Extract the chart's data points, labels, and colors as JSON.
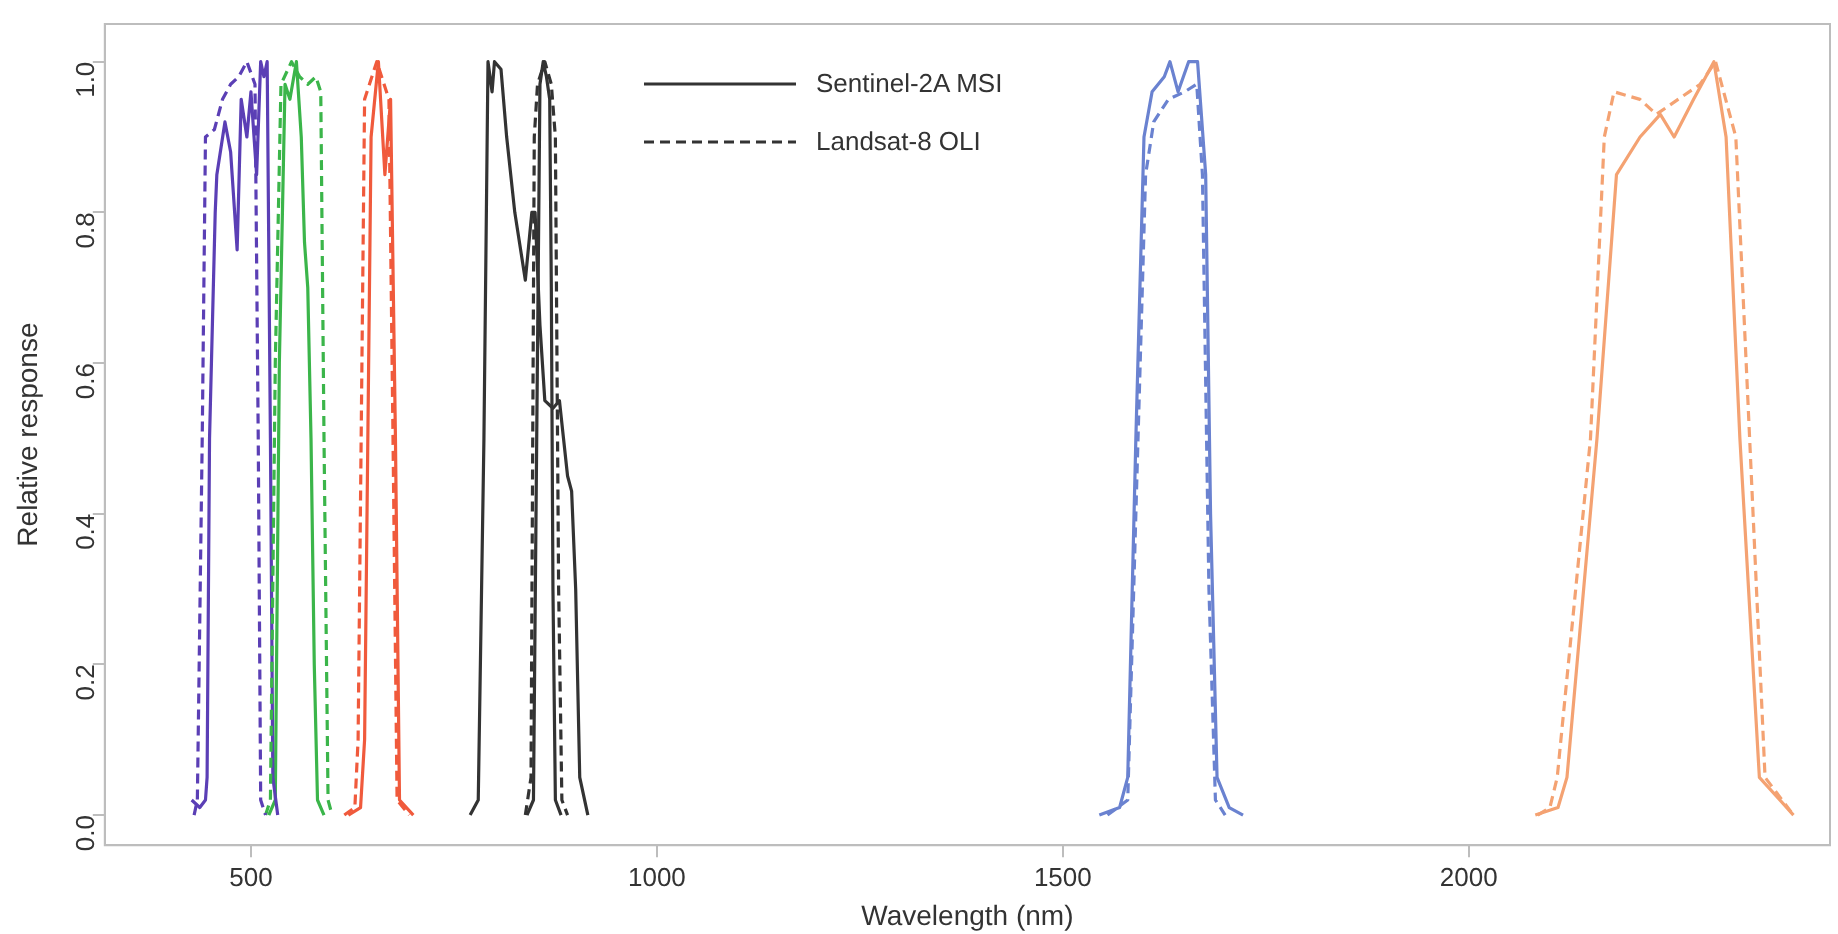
{
  "chart_data": {
    "type": "line",
    "xlabel": "Wavelength (nm)",
    "ylabel": "Relative response",
    "xlim": [
      320,
      2445
    ],
    "ylim": [
      -0.04,
      1.05
    ],
    "xticks": [
      500,
      1000,
      1500,
      2000
    ],
    "yticks": [
      {
        "value": 0,
        "label": "0.0"
      },
      0.2,
      0.4,
      0.6,
      0.8,
      {
        "value": 1,
        "label": "1.0"
      }
    ],
    "grid": false,
    "legend": "top",
    "marker": "none",
    "series": [
      {
        "color": "#5b3fb5",
        "line_style": "solid",
        "x": [
          427,
          437,
          444,
          446,
          449,
          456,
          458,
          468,
          475,
          483,
          488,
          495,
          500,
          507,
          512,
          516,
          520,
          524,
          527,
          533
        ],
        "values": [
          0.02,
          0.01,
          0.02,
          0.05,
          0.5,
          0.8,
          0.85,
          0.92,
          0.88,
          0.75,
          0.95,
          0.9,
          0.96,
          0.85,
          1.0,
          0.98,
          1.0,
          0.5,
          0.05,
          0
        ]
      },
      {
        "color": "#5b3fb5",
        "line_style": "dashed",
        "x": [
          430,
          434,
          440,
          444,
          455,
          465,
          475,
          485,
          495,
          505,
          509,
          512,
          518
        ],
        "values": [
          0,
          0.02,
          0.5,
          0.9,
          0.91,
          0.95,
          0.97,
          0.98,
          1.0,
          0.97,
          0.5,
          0.02,
          0
        ]
      },
      {
        "color": "#3bb54a",
        "line_style": "solid",
        "x": [
          522,
          530,
          535,
          542,
          548,
          556,
          562,
          566,
          570,
          574,
          578,
          582,
          590
        ],
        "values": [
          0,
          0.02,
          0.6,
          0.97,
          0.95,
          1.0,
          0.9,
          0.76,
          0.7,
          0.5,
          0.2,
          0.02,
          0
        ]
      },
      {
        "color": "#3bb54a",
        "line_style": "dashed",
        "x": [
          518,
          524,
          530,
          537,
          550,
          560,
          570,
          580,
          586,
          590,
          595,
          600
        ],
        "values": [
          0,
          0.02,
          0.6,
          0.97,
          1.0,
          0.98,
          0.97,
          0.98,
          0.96,
          0.5,
          0.02,
          0
        ]
      },
      {
        "color": "#f05a3c",
        "line_style": "solid",
        "x": [
          620,
          635,
          640,
          648,
          657,
          665,
          672,
          678,
          683,
          700
        ],
        "values": [
          0,
          0.01,
          0.1,
          0.9,
          1.0,
          0.85,
          0.95,
          0.5,
          0.02,
          0
        ]
      },
      {
        "color": "#f05a3c",
        "line_style": "dashed",
        "x": [
          615,
          628,
          632,
          640,
          655,
          670,
          675,
          680,
          695
        ],
        "values": [
          0,
          0.01,
          0.1,
          0.95,
          1.0,
          0.95,
          0.5,
          0.02,
          0
        ]
      },
      {
        "name": "Sentinel-2A MSI",
        "color": "#333333",
        "line_style": "solid",
        "x": [
          770,
          780,
          787,
          792,
          797,
          800,
          808,
          815,
          825,
          838,
          846,
          850,
          856,
          862,
          872,
          880,
          885,
          890,
          895,
          900,
          905,
          915
        ],
        "values": [
          0,
          0.02,
          0.5,
          1.0,
          0.96,
          1.0,
          0.99,
          0.9,
          0.8,
          0.71,
          0.8,
          0.8,
          0.65,
          0.55,
          0.54,
          0.55,
          0.5,
          0.45,
          0.43,
          0.3,
          0.05,
          0
        ]
      },
      {
        "color": "#333333",
        "line_style": "solid",
        "x": [
          840,
          848,
          852,
          856,
          860,
          864,
          868,
          870,
          872,
          875,
          882
        ],
        "values": [
          0,
          0.02,
          0.5,
          0.97,
          1.0,
          0.98,
          0.95,
          0.7,
          0.3,
          0.02,
          0
        ]
      },
      {
        "name": "Landsat-8 OLI",
        "color": "#333333",
        "line_style": "dashed",
        "x": [
          838,
          845,
          849,
          853,
          862,
          870,
          875,
          879,
          883,
          890
        ],
        "values": [
          0,
          0.05,
          0.9,
          0.97,
          1.0,
          0.97,
          0.9,
          0.3,
          0.02,
          0
        ]
      },
      {
        "color": "#6a82d0",
        "line_style": "solid",
        "x": [
          1545,
          1570,
          1580,
          1590,
          1600,
          1610,
          1625,
          1632,
          1642,
          1655,
          1666,
          1676,
          1682,
          1690,
          1705,
          1722
        ],
        "values": [
          0,
          0.01,
          0.05,
          0.5,
          0.9,
          0.96,
          0.98,
          1.0,
          0.96,
          1.0,
          1.0,
          0.85,
          0.4,
          0.05,
          0.01,
          0
        ]
      },
      {
        "color": "#6a82d0",
        "line_style": "dashed",
        "x": [
          1555,
          1580,
          1590,
          1602,
          1612,
          1630,
          1650,
          1665,
          1672,
          1680,
          1688,
          1700
        ],
        "values": [
          0,
          0.02,
          0.4,
          0.85,
          0.92,
          0.95,
          0.96,
          0.97,
          0.85,
          0.3,
          0.02,
          0
        ]
      },
      {
        "color": "#f4a272",
        "line_style": "solid",
        "x": [
          2082,
          2110,
          2121,
          2158,
          2182,
          2211,
          2236,
          2253,
          2277,
          2302,
          2317,
          2334,
          2358,
          2400
        ],
        "values": [
          0,
          0.01,
          0.05,
          0.5,
          0.85,
          0.9,
          0.93,
          0.9,
          0.95,
          1.0,
          0.9,
          0.5,
          0.05,
          0
        ]
      },
      {
        "color": "#f4a272",
        "line_style": "dashed",
        "x": [
          2085,
          2100,
          2109,
          2150,
          2167,
          2179,
          2211,
          2231,
          2285,
          2304,
          2329,
          2346,
          2365,
          2400
        ],
        "values": [
          0,
          0.01,
          0.05,
          0.5,
          0.9,
          0.96,
          0.95,
          0.93,
          0.97,
          1.0,
          0.9,
          0.5,
          0.05,
          0
        ]
      }
    ]
  }
}
